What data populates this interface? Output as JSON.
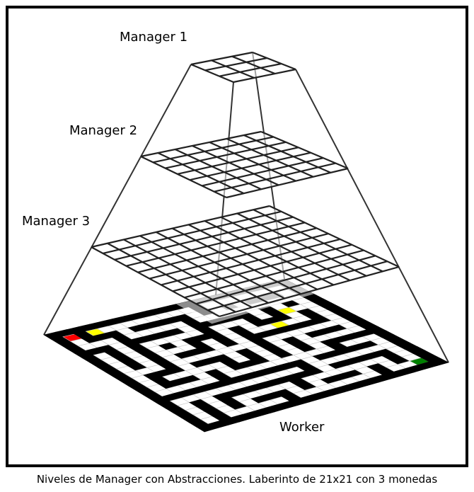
{
  "labels": {
    "manager1": "Manager 1",
    "manager2": "Manager 2",
    "manager3": "Manager 3",
    "worker": "Worker"
  },
  "caption": "Niveles de Manager con Abstracciones. Laberinto de 21x21 con 3 monedas",
  "levels": [
    {
      "name": "Manager 1",
      "grid": 3
    },
    {
      "name": "Manager 2",
      "grid": 7
    },
    {
      "name": "Manager 3",
      "grid": 11
    },
    {
      "name": "Worker",
      "grid": 21
    }
  ],
  "maze": {
    "size": 21,
    "coins": 3,
    "colors": {
      "wall": "#000000",
      "path": "#ffffff",
      "start": "#ff0000",
      "goal": "#008000",
      "coin": "#ffff00",
      "grid_line": "#222222",
      "frame": "#000000"
    }
  }
}
